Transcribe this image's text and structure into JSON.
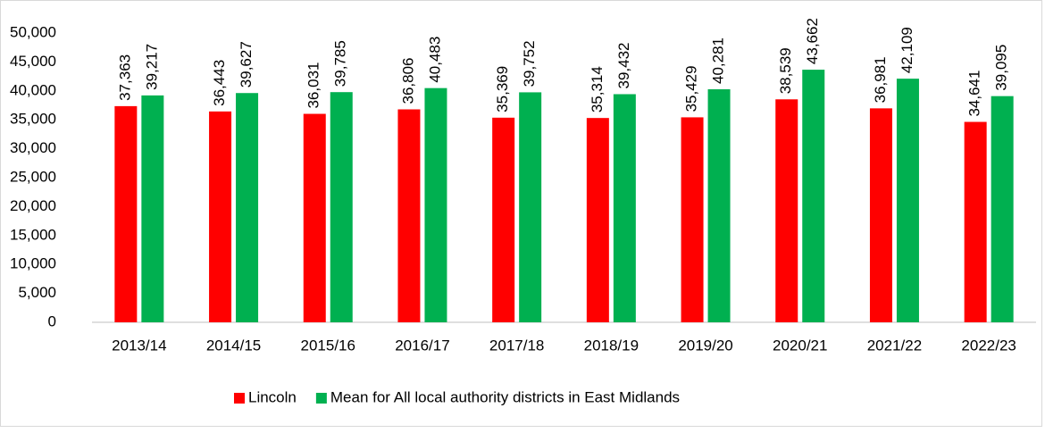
{
  "chart_data": {
    "type": "bar",
    "categories": [
      "2013/14",
      "2014/15",
      "2015/16",
      "2016/17",
      "2017/18",
      "2018/19",
      "2019/20",
      "2020/21",
      "2021/22",
      "2022/23"
    ],
    "series": [
      {
        "name": "Lincoln",
        "color": "#ff0000",
        "values": [
          37363,
          36443,
          36031,
          36806,
          35369,
          35314,
          35429,
          38539,
          36981,
          34641
        ],
        "value_labels": [
          "37,363",
          "36,443",
          "36,031",
          "36,806",
          "35,369",
          "35,314",
          "35,429",
          "38,539",
          "36,981",
          "34,641"
        ]
      },
      {
        "name": "Mean for All local authority districts in East Midlands",
        "color": "#00b050",
        "values": [
          39217,
          39627,
          39785,
          40483,
          39752,
          39432,
          40281,
          43662,
          42109,
          39095
        ],
        "value_labels": [
          "39,217",
          "39,627",
          "39,785",
          "40,483",
          "39,752",
          "39,432",
          "40,281",
          "43,662",
          "42,109",
          "39,095"
        ]
      }
    ],
    "ylim": [
      0,
      50000
    ],
    "yticks": [
      0,
      {
        "value": 5000,
        "label": "5,000"
      },
      {
        "value": 10000,
        "label": "10,000"
      },
      {
        "value": 15000,
        "label": "15,000"
      },
      {
        "value": 20000,
        "label": "20,000"
      },
      {
        "value": 25000,
        "label": "25,000"
      },
      {
        "value": 30000,
        "label": "30,000"
      },
      {
        "value": 35000,
        "label": "35,000"
      },
      {
        "value": 40000,
        "label": "40,000"
      },
      {
        "value": 45000,
        "label": "45,000"
      },
      {
        "value": 50000,
        "label": "50,000"
      }
    ],
    "grid": false,
    "legend": "bottom"
  }
}
